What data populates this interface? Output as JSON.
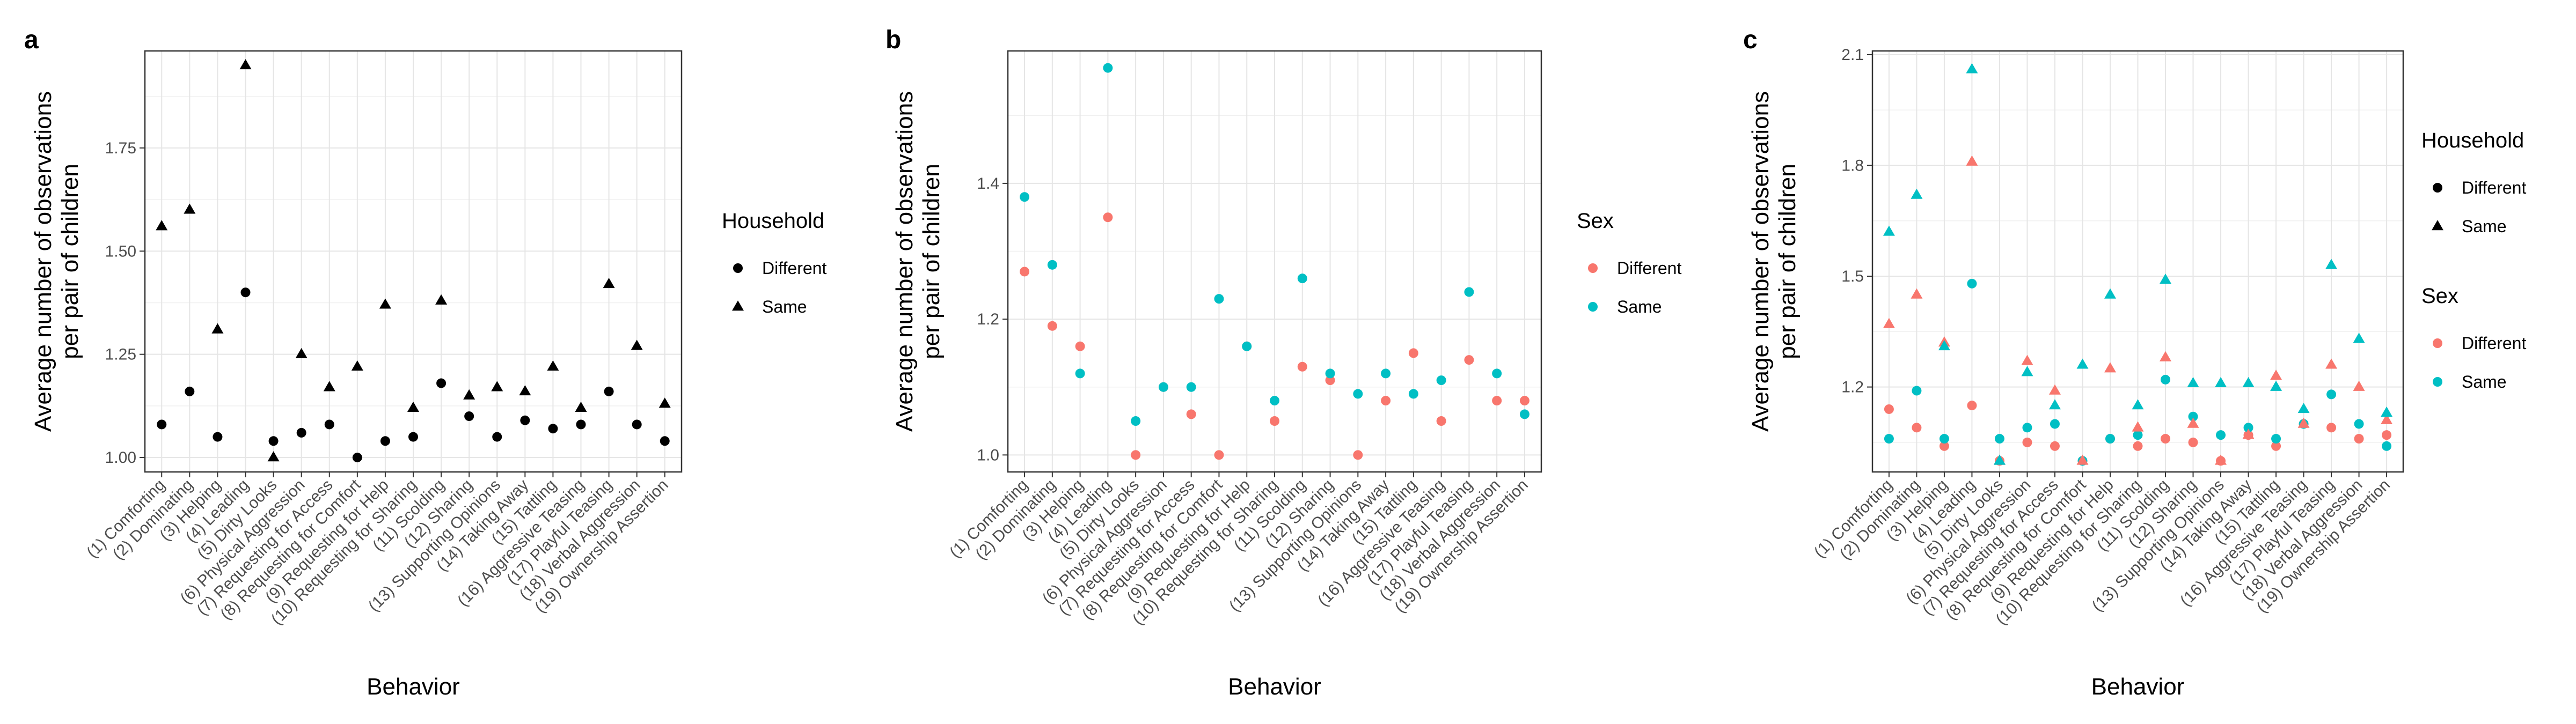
{
  "colors": {
    "different": "#F8766D",
    "same": "#00BFC4",
    "black": "#000000"
  },
  "categories": [
    "(1) Comforting",
    "(2) Dominating",
    "(3) Helping",
    "(4) Leading",
    "(5) Dirty Looks",
    "(6) Physical Aggression",
    "(7) Requesting for Access",
    "(8) Requesting for Comfort",
    "(9) Requesting for Help",
    "(10) Requesting for Sharing",
    "(11) Scolding",
    "(12) Sharing",
    "(13) Supporting Opinions",
    "(14) Taking Away",
    "(15) Tattling",
    "(16) Aggressive Teasing",
    "(17) Playful Teasing",
    "(18) Verbal Aggression",
    "(19) Ownership Assertion"
  ],
  "chart_data": [
    {
      "panel": "a",
      "type": "scatter",
      "xlabel": "Behavior",
      "ylabel": [
        "Average number of observations",
        "per pair of children"
      ],
      "ylim": [
        0.965,
        1.985
      ],
      "yticks": [
        1.0,
        1.25,
        1.5,
        1.75
      ],
      "ytick_labels": [
        "1.00",
        "1.25",
        "1.50",
        "1.75"
      ],
      "legend_title": "Household",
      "series": [
        {
          "name": "Different",
          "shape": "circle",
          "color": "black",
          "values": [
            1.08,
            1.16,
            1.05,
            1.4,
            1.04,
            1.06,
            1.08,
            1.0,
            1.04,
            1.05,
            1.18,
            1.1,
            1.05,
            1.09,
            1.07,
            1.08,
            1.16,
            1.08,
            1.04
          ]
        },
        {
          "name": "Same",
          "shape": "triangle",
          "color": "black",
          "values": [
            1.56,
            1.6,
            1.31,
            1.95,
            1.0,
            1.25,
            1.17,
            1.22,
            1.37,
            1.12,
            1.38,
            1.15,
            1.17,
            1.16,
            1.22,
            1.12,
            1.42,
            1.27,
            1.13
          ]
        }
      ]
    },
    {
      "panel": "b",
      "type": "scatter",
      "xlabel": "Behavior",
      "ylabel": [
        "Average number of observations",
        "per pair of children"
      ],
      "ylim": [
        0.975,
        1.595
      ],
      "yticks": [
        1.0,
        1.2,
        1.4
      ],
      "ytick_labels": [
        "1.0",
        "1.2",
        "1.4"
      ],
      "legend_title": "Sex",
      "series": [
        {
          "name": "Different",
          "shape": "circle",
          "color": "different",
          "values": [
            1.27,
            1.19,
            1.16,
            1.35,
            1.0,
            1.1,
            1.06,
            1.0,
            1.16,
            1.05,
            1.13,
            1.11,
            1.0,
            1.08,
            1.15,
            1.05,
            1.14,
            1.08,
            1.08
          ]
        },
        {
          "name": "Same",
          "shape": "circle",
          "color": "same",
          "values": [
            1.38,
            1.28,
            1.12,
            1.57,
            1.05,
            1.1,
            1.1,
            1.23,
            1.16,
            1.08,
            1.26,
            1.12,
            1.09,
            1.12,
            1.09,
            1.11,
            1.24,
            1.12,
            1.06
          ]
        }
      ]
    },
    {
      "panel": "c",
      "type": "scatter",
      "xlabel": "Behavior",
      "ylabel": [
        "Average number of observations",
        "per pair of children"
      ],
      "ylim": [
        0.97,
        2.11
      ],
      "yticks": [
        1.2,
        1.5,
        1.8,
        2.1
      ],
      "ytick_labels": [
        "1.2",
        "1.5",
        "1.8",
        "2.1"
      ],
      "legend": [
        {
          "title": "Household",
          "items": [
            {
              "label": "Different",
              "shape": "circle"
            },
            {
              "label": "Same",
              "shape": "triangle"
            }
          ]
        },
        {
          "title": "Sex",
          "items": [
            {
              "label": "Different",
              "color": "different"
            },
            {
              "label": "Same",
              "color": "same"
            }
          ]
        }
      ],
      "series": [
        {
          "name": "Different household / Different sex",
          "shape": "circle",
          "color": "different",
          "values": [
            1.14,
            1.09,
            1.04,
            1.15,
            1.0,
            1.05,
            1.04,
            1.0,
            1.06,
            1.04,
            1.06,
            1.05,
            1.0,
            1.07,
            1.04,
            1.1,
            1.09,
            1.06,
            1.07
          ]
        },
        {
          "name": "Different household / Same sex",
          "shape": "circle",
          "color": "same",
          "values": [
            1.06,
            1.19,
            1.06,
            1.48,
            1.06,
            1.09,
            1.1,
            1.0,
            1.06,
            1.07,
            1.22,
            1.12,
            1.07,
            1.09,
            1.06,
            1.1,
            1.18,
            1.1,
            1.04
          ]
        },
        {
          "name": "Same household / Different sex",
          "shape": "triangle",
          "color": "different",
          "values": [
            1.37,
            1.45,
            1.32,
            1.81,
            1.0,
            1.27,
            1.19,
            1.0,
            1.25,
            1.09,
            1.28,
            1.1,
            1.0,
            1.07,
            1.23,
            1.1,
            1.26,
            1.2,
            1.11
          ]
        },
        {
          "name": "Same household / Same sex",
          "shape": "triangle",
          "color": "same",
          "values": [
            1.62,
            1.72,
            1.31,
            2.06,
            1.0,
            1.24,
            1.15,
            1.26,
            1.45,
            1.15,
            1.49,
            1.21,
            1.21,
            1.21,
            1.2,
            1.14,
            1.53,
            1.33,
            1.13
          ]
        }
      ]
    }
  ]
}
